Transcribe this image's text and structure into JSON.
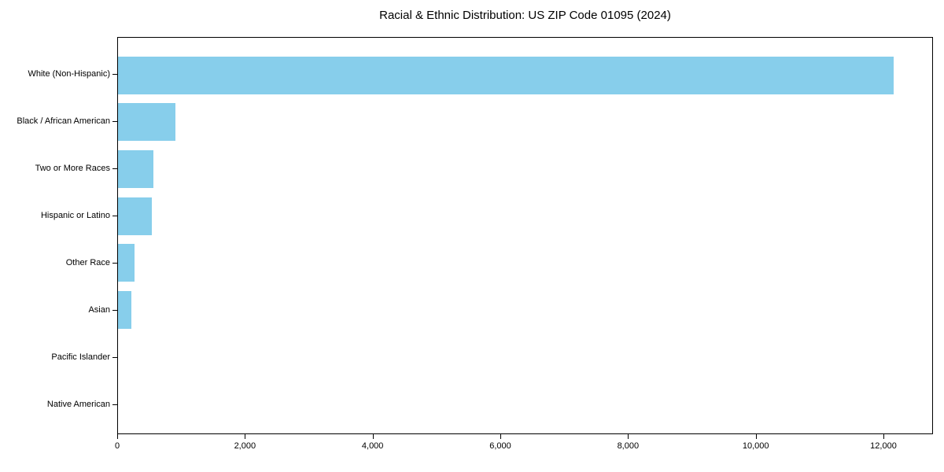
{
  "chart_data": {
    "type": "bar",
    "orientation": "horizontal",
    "title": "Racial & Ethnic Distribution: US ZIP Code 01095 (2024)",
    "categories": [
      "White (Non-Hispanic)",
      "Black / African American",
      "Two or More Races",
      "Hispanic or Latino",
      "Other Race",
      "Asian",
      "Pacific Islander",
      "Native American"
    ],
    "values": [
      12170,
      900,
      557,
      526,
      259,
      206,
      0,
      0
    ],
    "xlabel": "",
    "ylabel": "",
    "xlim": [
      0,
      12776
    ],
    "xticks": [
      {
        "value": 0,
        "label": "0"
      },
      {
        "value": 2000,
        "label": "2,000"
      },
      {
        "value": 4000,
        "label": "4,000"
      },
      {
        "value": 6000,
        "label": "6,000"
      },
      {
        "value": 8000,
        "label": "8,000"
      },
      {
        "value": 10000,
        "label": "10,000"
      },
      {
        "value": 12000,
        "label": "12,000"
      }
    ],
    "bar_color": "#87CEEB",
    "axis_color": "#000000",
    "background_color": "#ffffff",
    "grid": false,
    "legend": false
  }
}
